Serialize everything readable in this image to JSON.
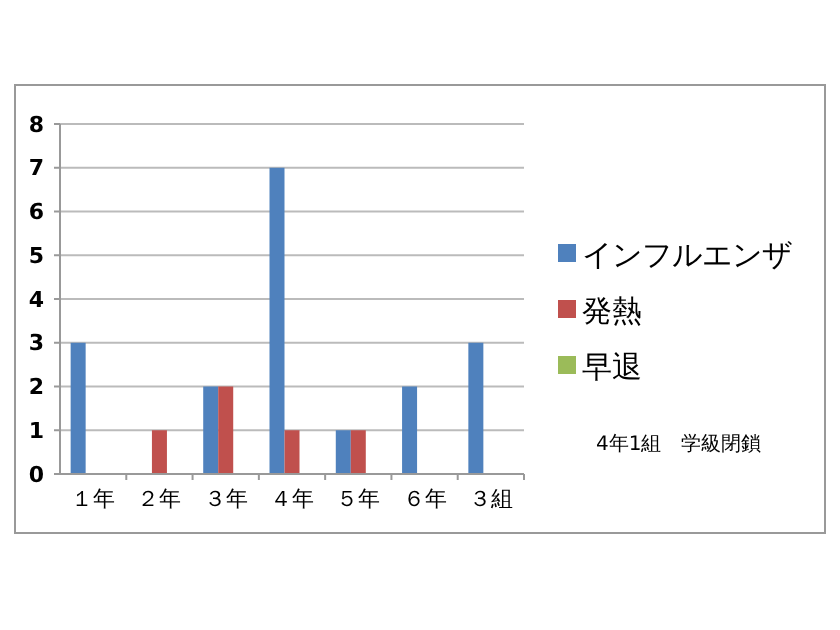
{
  "chart_data": {
    "type": "bar",
    "categories": [
      "１年",
      "２年",
      "３年",
      "４年",
      "５年",
      "６年",
      "３組"
    ],
    "series": [
      {
        "name": "インフルエンザ",
        "color": "#4f81bd",
        "values": [
          3,
          0,
          2,
          7,
          1,
          2,
          3
        ]
      },
      {
        "name": "発熱",
        "color": "#c0504d",
        "values": [
          0,
          1,
          2,
          1,
          1,
          0,
          0
        ]
      },
      {
        "name": "早退",
        "color": "#9bbb59",
        "values": [
          0,
          0,
          0,
          0,
          0,
          0,
          0
        ]
      }
    ],
    "ylim": [
      0,
      8
    ],
    "yticks": [
      0,
      1,
      2,
      3,
      4,
      5,
      6,
      7,
      8
    ],
    "grid": "y",
    "legend": "right",
    "annotations": [
      "4年1組　学級閉鎖"
    ]
  }
}
